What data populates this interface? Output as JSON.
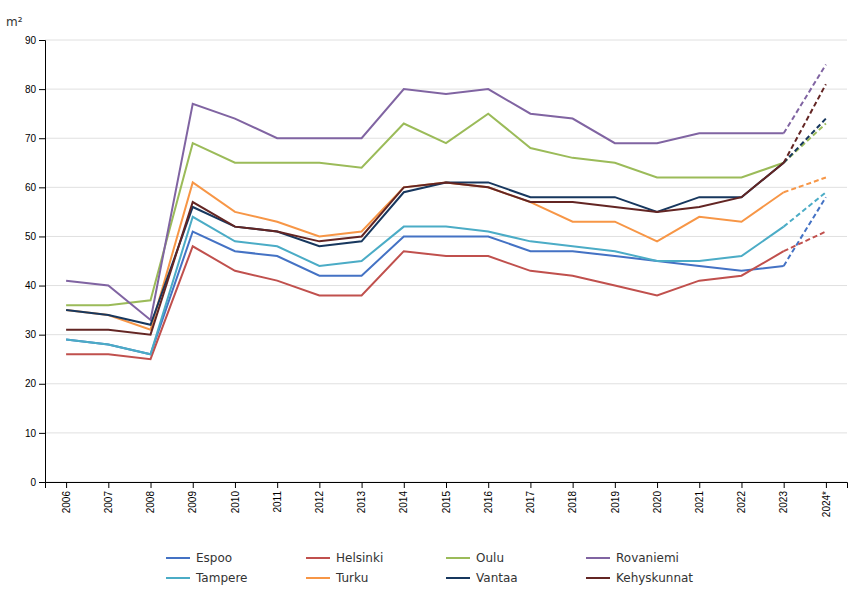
{
  "chart_data": {
    "type": "line",
    "ylabel": "m²",
    "categories": [
      "2006",
      "2007",
      "2008",
      "2009",
      "2010",
      "2011",
      "2012",
      "2013",
      "2014",
      "2015",
      "2016",
      "2017",
      "2018",
      "2019",
      "2020",
      "2021",
      "2022",
      "2023",
      "2024*"
    ],
    "series": [
      {
        "name": "Espoo",
        "color": "#4472C4",
        "values": [
          29,
          28,
          26,
          51,
          47,
          46,
          42,
          42,
          50,
          50,
          50,
          47,
          47,
          46,
          45,
          44,
          43,
          44,
          58
        ]
      },
      {
        "name": "Helsinki",
        "color": "#C0504D",
        "values": [
          26,
          26,
          25,
          48,
          43,
          41,
          38,
          38,
          47,
          46,
          46,
          43,
          42,
          40,
          38,
          41,
          42,
          47,
          51
        ]
      },
      {
        "name": "Oulu",
        "color": "#9BBB59",
        "values": [
          36,
          36,
          37,
          69,
          65,
          65,
          65,
          64,
          73,
          69,
          75,
          68,
          66,
          65,
          62,
          62,
          62,
          65,
          73
        ]
      },
      {
        "name": "Rovaniemi",
        "color": "#8064A2",
        "values": [
          41,
          40,
          33,
          77,
          74,
          70,
          70,
          70,
          80,
          79,
          80,
          75,
          74,
          69,
          69,
          71,
          71,
          71,
          85
        ]
      },
      {
        "name": "Tampere",
        "color": "#4BACC6",
        "values": [
          29,
          28,
          26,
          54,
          49,
          48,
          44,
          45,
          52,
          52,
          51,
          49,
          48,
          47,
          45,
          45,
          46,
          52,
          59
        ]
      },
      {
        "name": "Turku",
        "color": "#F79646",
        "values": [
          35,
          34,
          31,
          61,
          55,
          53,
          50,
          51,
          60,
          61,
          60,
          57,
          53,
          53,
          49,
          54,
          53,
          59,
          62
        ]
      },
      {
        "name": "Vantaa",
        "color": "#17375E",
        "values": [
          35,
          34,
          32,
          56,
          52,
          51,
          48,
          49,
          59,
          61,
          61,
          58,
          58,
          58,
          55,
          58,
          58,
          65,
          74
        ]
      },
      {
        "name": "Kehyskunnat",
        "color": "#632523",
        "values": [
          31,
          31,
          30,
          57,
          52,
          51,
          49,
          50,
          60,
          61,
          60,
          57,
          57,
          56,
          55,
          56,
          58,
          65,
          81
        ]
      }
    ],
    "ylim": [
      0,
      90
    ],
    "yticks": [
      0,
      10,
      20,
      30,
      40,
      50,
      60,
      70,
      80,
      90
    ],
    "grid": true
  }
}
